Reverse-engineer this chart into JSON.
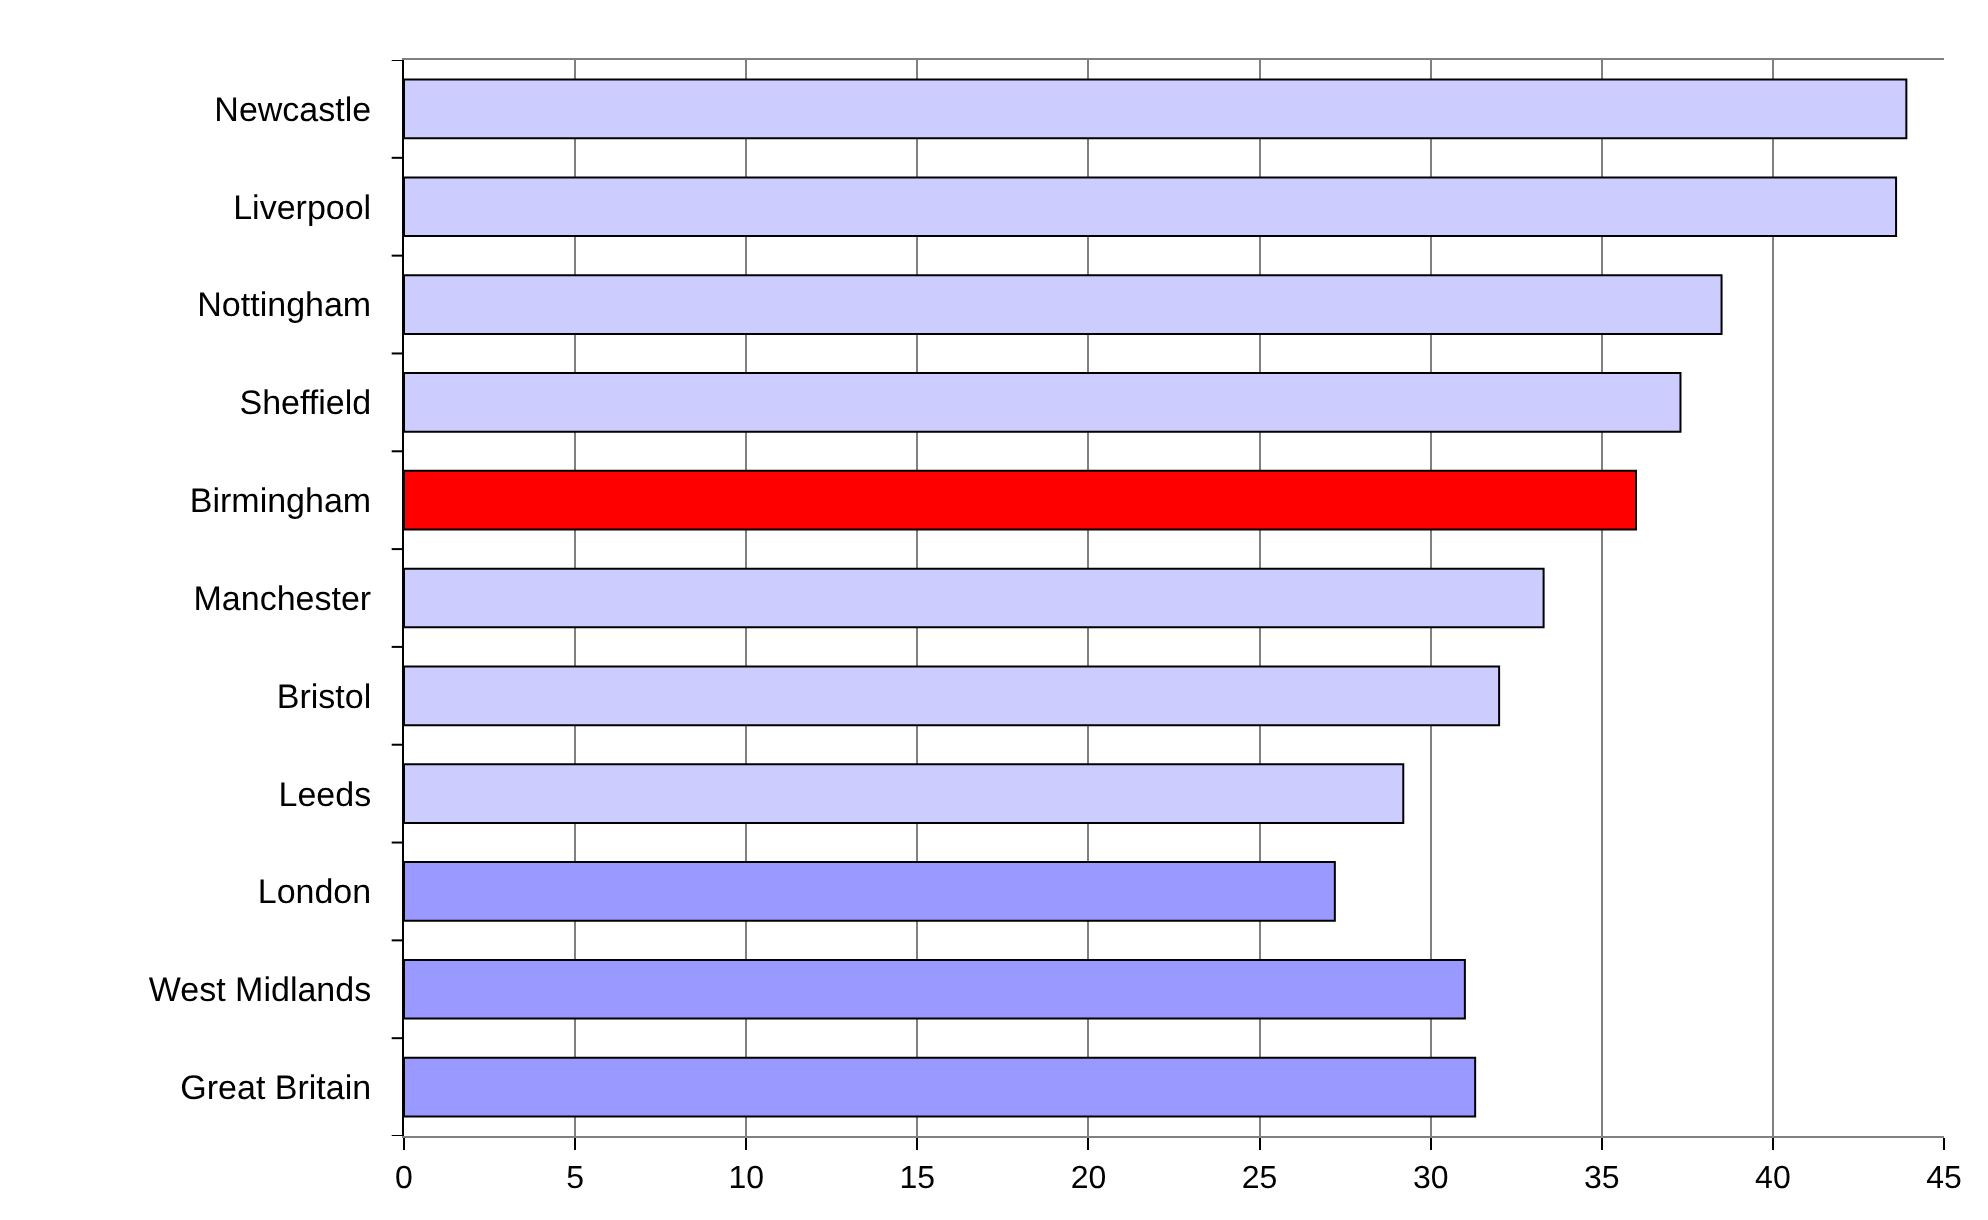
{
  "chart_data": {
    "type": "bar",
    "orientation": "horizontal",
    "categories": [
      "Newcastle",
      "Liverpool",
      "Nottingham",
      "Sheffield",
      "Birmingham",
      "Manchester",
      "Bristol",
      "Leeds",
      "London",
      "West Midlands",
      "Great Britain"
    ],
    "values": [
      43.9,
      43.6,
      38.5,
      37.3,
      36.0,
      33.3,
      32.0,
      29.2,
      27.2,
      31.0,
      31.3
    ],
    "colors": [
      "#ccccff",
      "#ccccff",
      "#ccccff",
      "#ccccff",
      "#ff0000",
      "#ccccff",
      "#ccccff",
      "#ccccff",
      "#9999ff",
      "#9999ff",
      "#9999ff"
    ],
    "xlim": [
      0,
      45
    ],
    "xticks": [
      0,
      5,
      10,
      15,
      20,
      25,
      30,
      35,
      40,
      45
    ],
    "grid": "x"
  }
}
